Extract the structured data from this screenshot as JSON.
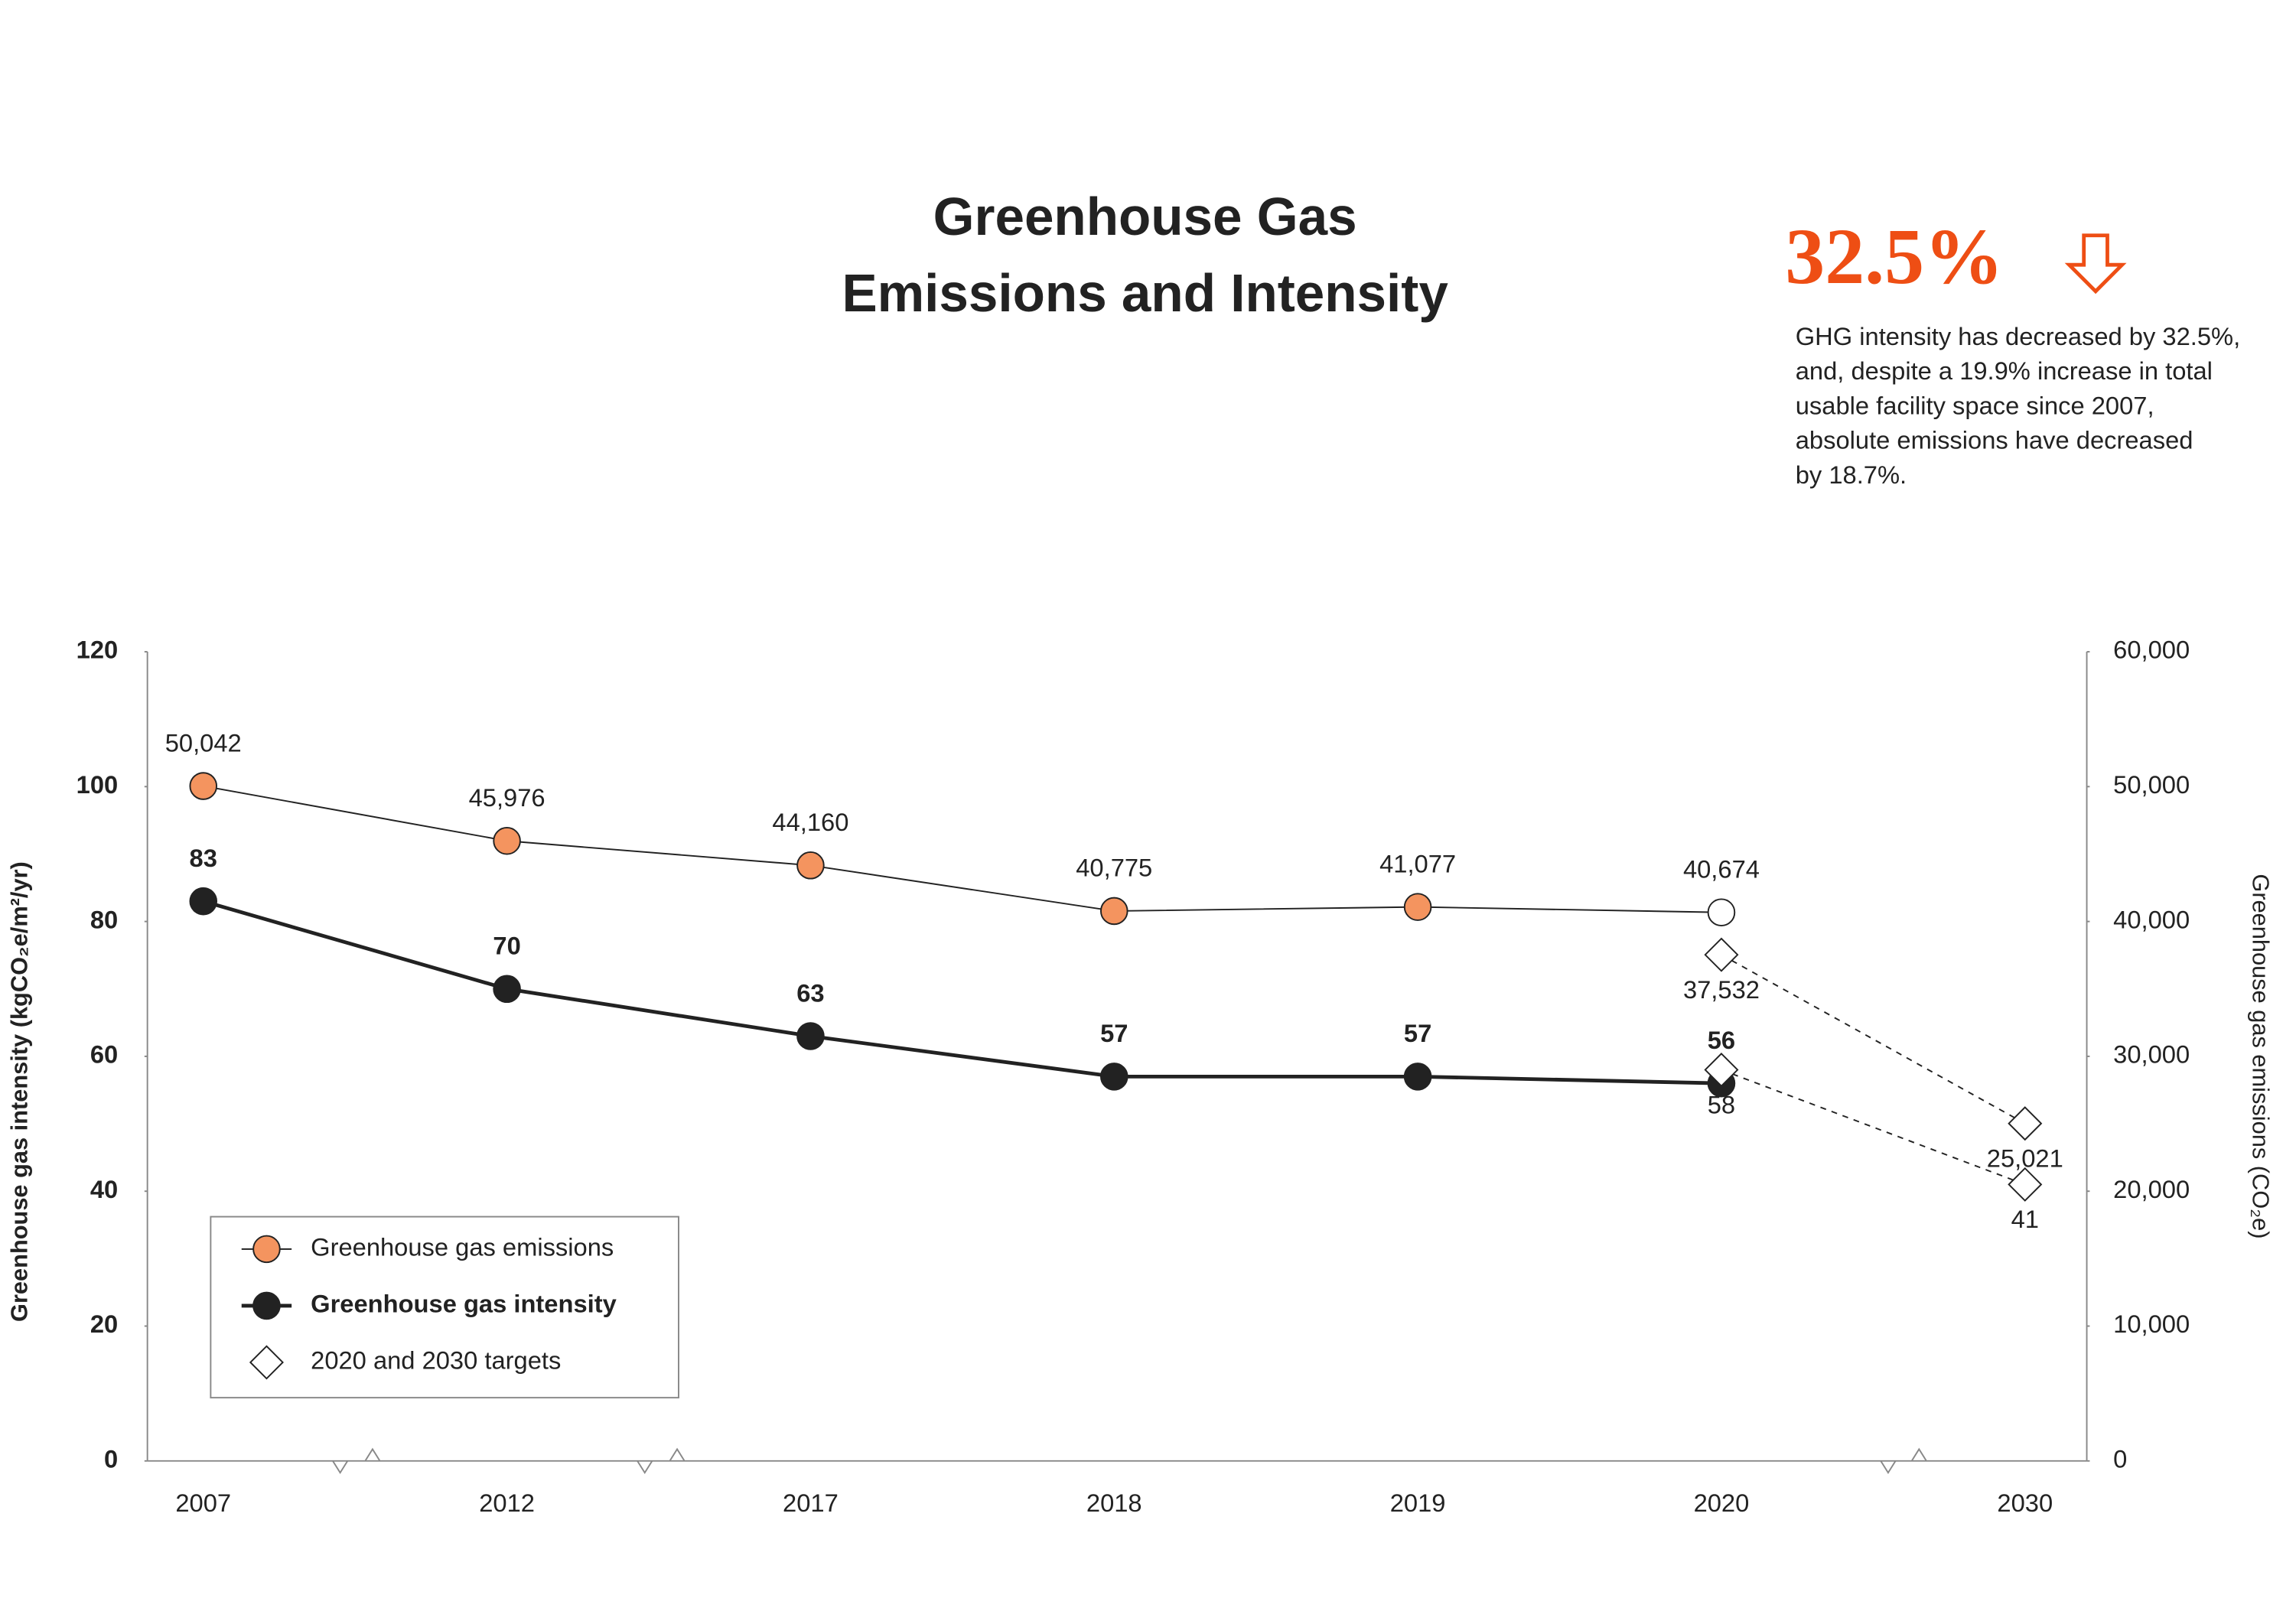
{
  "chart_data": {
    "type": "line",
    "title": [
      "Greenhouse Gas",
      "Emissions and Intensity"
    ],
    "callout": {
      "headline": "32.5%",
      "text": [
        "GHG intensity has decreased by 32.5%,",
        "and, despite a 19.9% increase in total",
        "usable facility space since 2007,",
        "absolute emissions have decreased",
        "by 18.7%."
      ]
    },
    "ylabel": "Greenhouse gas intensity (kgCO₂e/m²/yr)",
    "y2label": "Greenhouse gas emissions (CO₂e)",
    "categories": [
      "2007",
      "2012",
      "2017",
      "2018",
      "2019",
      "2020",
      "2030"
    ],
    "ylim": [
      0,
      120
    ],
    "yticks": [
      0,
      20,
      40,
      60,
      80,
      100,
      120
    ],
    "y2lim": [
      0,
      60000
    ],
    "y2ticks": [
      0,
      {
        "value": 10000,
        "label": "10,000"
      },
      {
        "value": 20000,
        "label": "20,000"
      },
      {
        "value": 30000,
        "label": "30,000"
      },
      {
        "value": 40000,
        "label": "40,000"
      },
      {
        "value": 50000,
        "label": "50,000"
      },
      {
        "value": 60000,
        "label": "60,000"
      }
    ],
    "series": [
      {
        "name": "Greenhouse gas emissions",
        "axis": "y2",
        "color": "#f4945f",
        "marker": "circle",
        "line_width": 1,
        "hollow_points": [
          5
        ],
        "values": [
          50042,
          45976,
          44160,
          40775,
          41077,
          40674,
          null
        ],
        "value_labels": [
          "50,042",
          "45,976",
          "44,160",
          "40,775",
          "41,077",
          "40,674",
          null
        ]
      },
      {
        "name": "Greenhouse gas intensity",
        "axis": "y",
        "color": "#222222",
        "marker": "circle",
        "line_width": 2.5,
        "bold": true,
        "values": [
          83,
          70,
          63,
          57,
          57,
          56,
          null
        ]
      },
      {
        "name": "2020 and 2030 targets",
        "axis": "y",
        "color": "#ffffff",
        "marker": "diamond",
        "dashed": true,
        "labels_below": true,
        "values": [
          null,
          null,
          null,
          null,
          null,
          58,
          41
        ]
      },
      {
        "axis": "y2",
        "color": "#ffffff",
        "marker": "diamond",
        "dashed": true,
        "labels_below": true,
        "values": [
          null,
          null,
          null,
          null,
          null,
          37532,
          25021
        ],
        "value_labels": [
          null,
          null,
          null,
          null,
          null,
          "37,532",
          "25,021"
        ]
      }
    ]
  }
}
